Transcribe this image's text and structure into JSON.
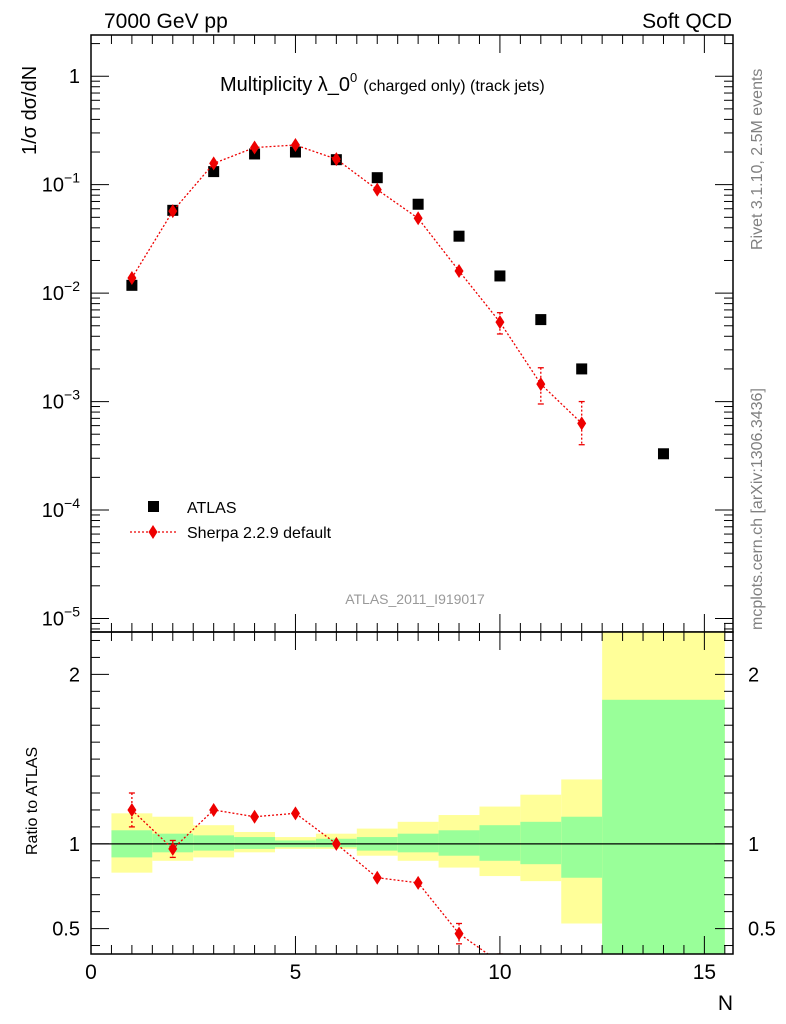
{
  "header": {
    "left": "7000 GeV pp",
    "right": "Soft QCD"
  },
  "side_labels": {
    "rivet": "Rivet 3.1.10,  2.5M events",
    "source": "mcplots.cern.ch [arXiv:1306.3436]"
  },
  "chart_data": [
    {
      "type": "scatter",
      "title": "Multiplicity λ_0⁰ (charged only) (track jets)",
      "title_main": "Multiplicity λ_0",
      "title_sup": "0",
      "title_sub": "(charged only) (track jets)",
      "analysis_label": "ATLAS_2011_I919017",
      "xlabel": "N",
      "ylabel": "1/σ dσ/dN",
      "xlim": [
        0,
        15.7
      ],
      "ylim": [
        7.5e-06,
        2.4
      ],
      "yscale": "log",
      "y_ticks": [
        {
          "value": 1,
          "base": "1",
          "exp": ""
        },
        {
          "value": 0.1,
          "base": "10",
          "exp": "−1"
        },
        {
          "value": 0.01,
          "base": "10",
          "exp": "−2"
        },
        {
          "value": 0.001,
          "base": "10",
          "exp": "−3"
        },
        {
          "value": 0.0001,
          "base": "10",
          "exp": "−4"
        },
        {
          "value": 1e-05,
          "base": "10",
          "exp": "−5"
        }
      ],
      "legend_position": "bottom-left",
      "series": [
        {
          "name": "ATLAS",
          "marker": "square",
          "color": "#000000",
          "x": [
            1,
            2,
            3,
            4,
            5,
            6,
            7,
            8,
            9,
            10,
            11,
            12,
            14
          ],
          "y": [
            0.0118,
            0.058,
            0.132,
            0.192,
            0.2,
            0.17,
            0.116,
            0.066,
            0.0335,
            0.0144,
            0.0057,
            0.002,
            0.00033
          ]
        },
        {
          "name": "Sherpa 2.2.9 default",
          "marker": "diamond",
          "color": "#ee0000",
          "line": "dotted",
          "x": [
            1,
            2,
            3,
            4,
            5,
            6,
            7,
            8,
            9,
            10,
            11,
            12
          ],
          "y": [
            0.0138,
            0.057,
            0.157,
            0.22,
            0.232,
            0.172,
            0.09,
            0.049,
            0.016,
            0.0054,
            0.00145,
            0.00063
          ],
          "err_up": [
            0.0015,
            0.003,
            0.005,
            0.006,
            0.006,
            0.006,
            0.005,
            0.004,
            0.002,
            0.0012,
            0.0006,
            0.00037
          ],
          "err_down": [
            0.0015,
            0.003,
            0.005,
            0.006,
            0.006,
            0.006,
            0.005,
            0.004,
            0.002,
            0.0012,
            0.0005,
            0.00023
          ]
        }
      ]
    },
    {
      "type": "scatter",
      "title": "",
      "xlabel": "N",
      "ylabel": "Ratio to ATLAS",
      "xlim": [
        0,
        15.7
      ],
      "ylim": [
        0.35,
        2.25
      ],
      "x_ticks": [
        0,
        5,
        10,
        15
      ],
      "y_ticks": [
        0.5,
        1,
        2
      ],
      "y_tick_labels": [
        "0.5",
        "1",
        "2"
      ],
      "bands": {
        "edges": [
          0.5,
          1.5,
          2.5,
          3.5,
          4.5,
          5.5,
          6.5,
          7.5,
          8.5,
          9.5,
          10.5,
          11.5,
          12.5,
          15.5
        ],
        "green_lo": [
          0.92,
          0.95,
          0.96,
          0.97,
          0.98,
          0.98,
          0.96,
          0.95,
          0.93,
          0.9,
          0.88,
          0.8,
          0.0
        ],
        "green_hi": [
          1.08,
          1.06,
          1.05,
          1.04,
          1.02,
          1.03,
          1.04,
          1.06,
          1.08,
          1.11,
          1.13,
          1.16,
          1.85
        ],
        "yellow_lo": [
          0.83,
          0.9,
          0.92,
          0.95,
          0.97,
          0.97,
          0.93,
          0.9,
          0.86,
          0.81,
          0.78,
          0.53,
          0.0
        ],
        "yellow_hi": [
          1.18,
          1.16,
          1.11,
          1.07,
          1.04,
          1.06,
          1.09,
          1.13,
          1.17,
          1.22,
          1.29,
          1.38,
          2.25
        ],
        "green_color": "#99ff99",
        "yellow_color": "#ffff99"
      },
      "series": [
        {
          "name": "Sherpa 2.2.9 default",
          "marker": "diamond",
          "color": "#ee0000",
          "line": "dotted",
          "x": [
            1,
            2,
            3,
            4,
            5,
            6,
            7,
            8,
            9,
            10
          ],
          "y": [
            1.2,
            0.97,
            1.2,
            1.16,
            1.18,
            1.0,
            0.8,
            0.77,
            0.47,
            0.3
          ],
          "err_up": [
            0.1,
            0.05,
            0.04,
            0.04,
            0.03,
            0.03,
            0.04,
            0.04,
            0.06,
            0.05
          ],
          "err_down": [
            0.1,
            0.05,
            0.04,
            0.04,
            0.03,
            0.03,
            0.04,
            0.04,
            0.06,
            0.05
          ]
        }
      ]
    }
  ]
}
